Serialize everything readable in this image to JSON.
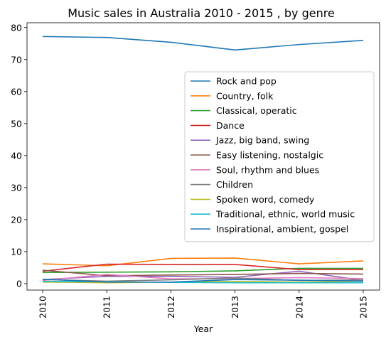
{
  "chart_data": {
    "type": "line",
    "title": "Music sales in Australia 2010 - 2015 , by genre",
    "xlabel": "Year",
    "ylabel": "",
    "categories": [
      "2010",
      "2011",
      "2012",
      "2013",
      "2014",
      "2015"
    ],
    "ylim": [
      -2,
      81.5
    ],
    "yticks": [
      0,
      10,
      20,
      30,
      40,
      50,
      60,
      70,
      80
    ],
    "grid": false,
    "legend_position": "center-right",
    "series": [
      {
        "name": "Rock and pop",
        "color": "#1f77b4",
        "values": [
          77.2,
          76.9,
          75.4,
          73.0,
          74.7,
          76.0
        ]
      },
      {
        "name": "Country, folk",
        "color": "#ff7f0e",
        "values": [
          6.2,
          5.6,
          7.9,
          8.0,
          6.2,
          7.1
        ]
      },
      {
        "name": "Classical, operatic",
        "color": "#2ca02c",
        "values": [
          3.5,
          3.6,
          3.7,
          4.0,
          4.8,
          4.8
        ]
      },
      {
        "name": "Dance",
        "color": "#d62728",
        "values": [
          3.9,
          6.1,
          6.0,
          6.0,
          4.4,
          4.4
        ]
      },
      {
        "name": "Jazz, big band, swing",
        "color": "#9467bd",
        "values": [
          1.3,
          2.3,
          2.3,
          2.0,
          3.9,
          1.0
        ]
      },
      {
        "name": "Easy listening, nostalgic",
        "color": "#8c564b",
        "values": [
          4.2,
          2.5,
          2.7,
          2.9,
          3.2,
          3.0
        ]
      },
      {
        "name": "Soul, rhythm and blues",
        "color": "#e377c2",
        "values": [
          1.0,
          2.9,
          1.5,
          1.6,
          1.9,
          1.6
        ]
      },
      {
        "name": "Children",
        "color": "#7f7f7f",
        "values": [
          1.3,
          0.8,
          1.2,
          1.8,
          1.0,
          1.2
        ]
      },
      {
        "name": "Spoken word, comedy",
        "color": "#bcbd22",
        "values": [
          0.5,
          0.3,
          0.5,
          0.7,
          0.5,
          0.8
        ]
      },
      {
        "name": "Traditional, ethnic, world music",
        "color": "#17becf",
        "values": [
          0.7,
          0.6,
          0.4,
          0.3,
          0.3,
          0.3
        ]
      },
      {
        "name": "Inspirational, ambient, gospel",
        "color": "#1f77b4",
        "values": [
          1.4,
          0.5,
          0.5,
          1.3,
          1.1,
          0.8
        ]
      }
    ]
  }
}
